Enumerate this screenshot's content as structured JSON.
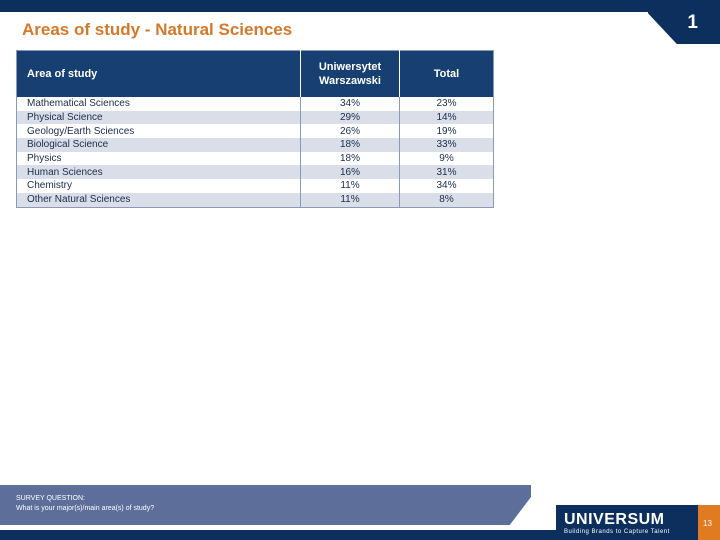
{
  "title": "Areas of study - Natural Sciences",
  "page_badge": "1",
  "table": {
    "headers": {
      "area": "Area of study",
      "uw_line1": "Uniwersytet",
      "uw_line2": "Warszawski",
      "total": "Total"
    },
    "rows": [
      {
        "area": "Mathematical Sciences",
        "uw": "34%",
        "total": "23%"
      },
      {
        "area": "Physical Science",
        "uw": "29%",
        "total": "14%"
      },
      {
        "area": "Geology/Earth Sciences",
        "uw": "26%",
        "total": "19%"
      },
      {
        "area": "Biological Science",
        "uw": "18%",
        "total": "33%"
      },
      {
        "area": "Physics",
        "uw": "18%",
        "total": "9%"
      },
      {
        "area": "Human Sciences",
        "uw": "16%",
        "total": "31%"
      },
      {
        "area": "Chemistry",
        "uw": "11%",
        "total": "34%"
      },
      {
        "area": "Other Natural Sciences",
        "uw": "11%",
        "total": "8%"
      }
    ]
  },
  "survey": {
    "label": "SURVEY QUESTION:",
    "question": "What is your major(s)/main area(s) of study?"
  },
  "footer": {
    "logo_text": "UNIVERSUM",
    "tagline": "Building Brands to Capture Talent",
    "page_number": "13"
  }
}
